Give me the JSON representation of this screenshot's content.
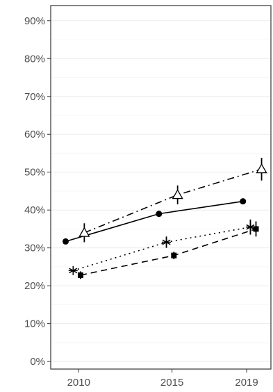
{
  "chart_data": {
    "type": "line",
    "title": "",
    "xlabel": "",
    "ylabel": "",
    "x_ticks": [
      "2010",
      "2015",
      "2019"
    ],
    "y_ticks": [
      "0%",
      "10%",
      "20%",
      "30%",
      "40%",
      "50%",
      "60%",
      "70%",
      "80%",
      "90%"
    ],
    "ylim": [
      -0.02,
      0.94
    ],
    "xlim": [
      2008.5,
      2020.3
    ],
    "grid": true,
    "legend": "none",
    "series": [
      {
        "marker": "circle",
        "line": "solid",
        "x": [
          2009.3,
          2014.3,
          2018.8
        ],
        "y": [
          0.317,
          0.39,
          0.423
        ],
        "error": [
          0,
          0,
          0
        ]
      },
      {
        "marker": "open-triangle",
        "line": "dashdot",
        "x": [
          2010.3,
          2015.3,
          2019.8
        ],
        "y": [
          0.34,
          0.44,
          0.508
        ],
        "error": [
          0.025,
          0.025,
          0.03
        ]
      },
      {
        "marker": "asterisk",
        "line": "dotted",
        "x": [
          2009.7,
          2014.7,
          2019.2
        ],
        "y": [
          0.24,
          0.315,
          0.355
        ],
        "error": [
          0,
          0.015,
          0.02
        ]
      },
      {
        "marker": "square",
        "line": "dashed",
        "x": [
          2010.1,
          2015.1,
          2019.5
        ],
        "y": [
          0.228,
          0.28,
          0.35
        ],
        "error": [
          0.01,
          0.01,
          0.02
        ]
      }
    ]
  }
}
